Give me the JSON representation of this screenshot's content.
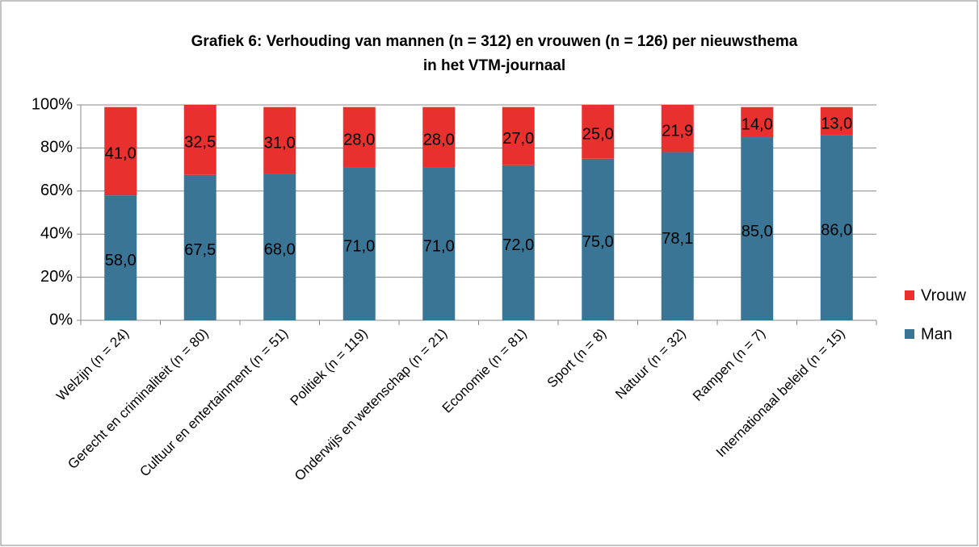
{
  "chart_data": {
    "type": "stacked_bar",
    "title": [
      "Grafiek 6: Verhouding van mannen (n = 312) en vrouwen (n = 126) per nieuwsthema",
      "in het VTM-journaal"
    ],
    "categories": [
      "Welzijn (n = 24)",
      "Gerecht en criminaliteit (n = 80)",
      "Cultuur en entertainment (n = 51)",
      "Politiek (n = 119)",
      "Onderwijs en wetenschap (n = 21)",
      "Economie (n = 81)",
      "Sport (n = 8)",
      "Natuur (n = 32)",
      "Rampen (n = 7)",
      "Internationaal beleid (n = 15)"
    ],
    "series": [
      {
        "name": "Man",
        "color": "#3b7595",
        "values": [
          58,
          67.5,
          68,
          71,
          71,
          72,
          75,
          78.1,
          85,
          86
        ],
        "value_labels": [
          "58,0",
          "67,5",
          "68,0",
          "71,0",
          "71,0",
          "72,0",
          "75,0",
          "78,1",
          "85,0",
          "86,0"
        ]
      },
      {
        "name": "Vrouw",
        "color": "#e8312f",
        "values": [
          41,
          32.5,
          31,
          28,
          28,
          27,
          25,
          21.9,
          14,
          13
        ],
        "value_labels": [
          "41,0",
          "32,5",
          "31,0",
          "28,0",
          "28,0",
          "27,0",
          "25,0",
          "21,9",
          "14,0",
          "13,0"
        ]
      }
    ],
    "ylim": [
      0,
      100
    ],
    "yticks": [
      {
        "value": 0,
        "label": "0%"
      },
      {
        "value": 20,
        "label": "20%"
      },
      {
        "value": 40,
        "label": "40%"
      },
      {
        "value": 60,
        "label": "60%"
      },
      {
        "value": 80,
        "label": "80%"
      },
      {
        "value": 100,
        "label": "100%"
      }
    ],
    "grid": true,
    "legend": "right"
  }
}
